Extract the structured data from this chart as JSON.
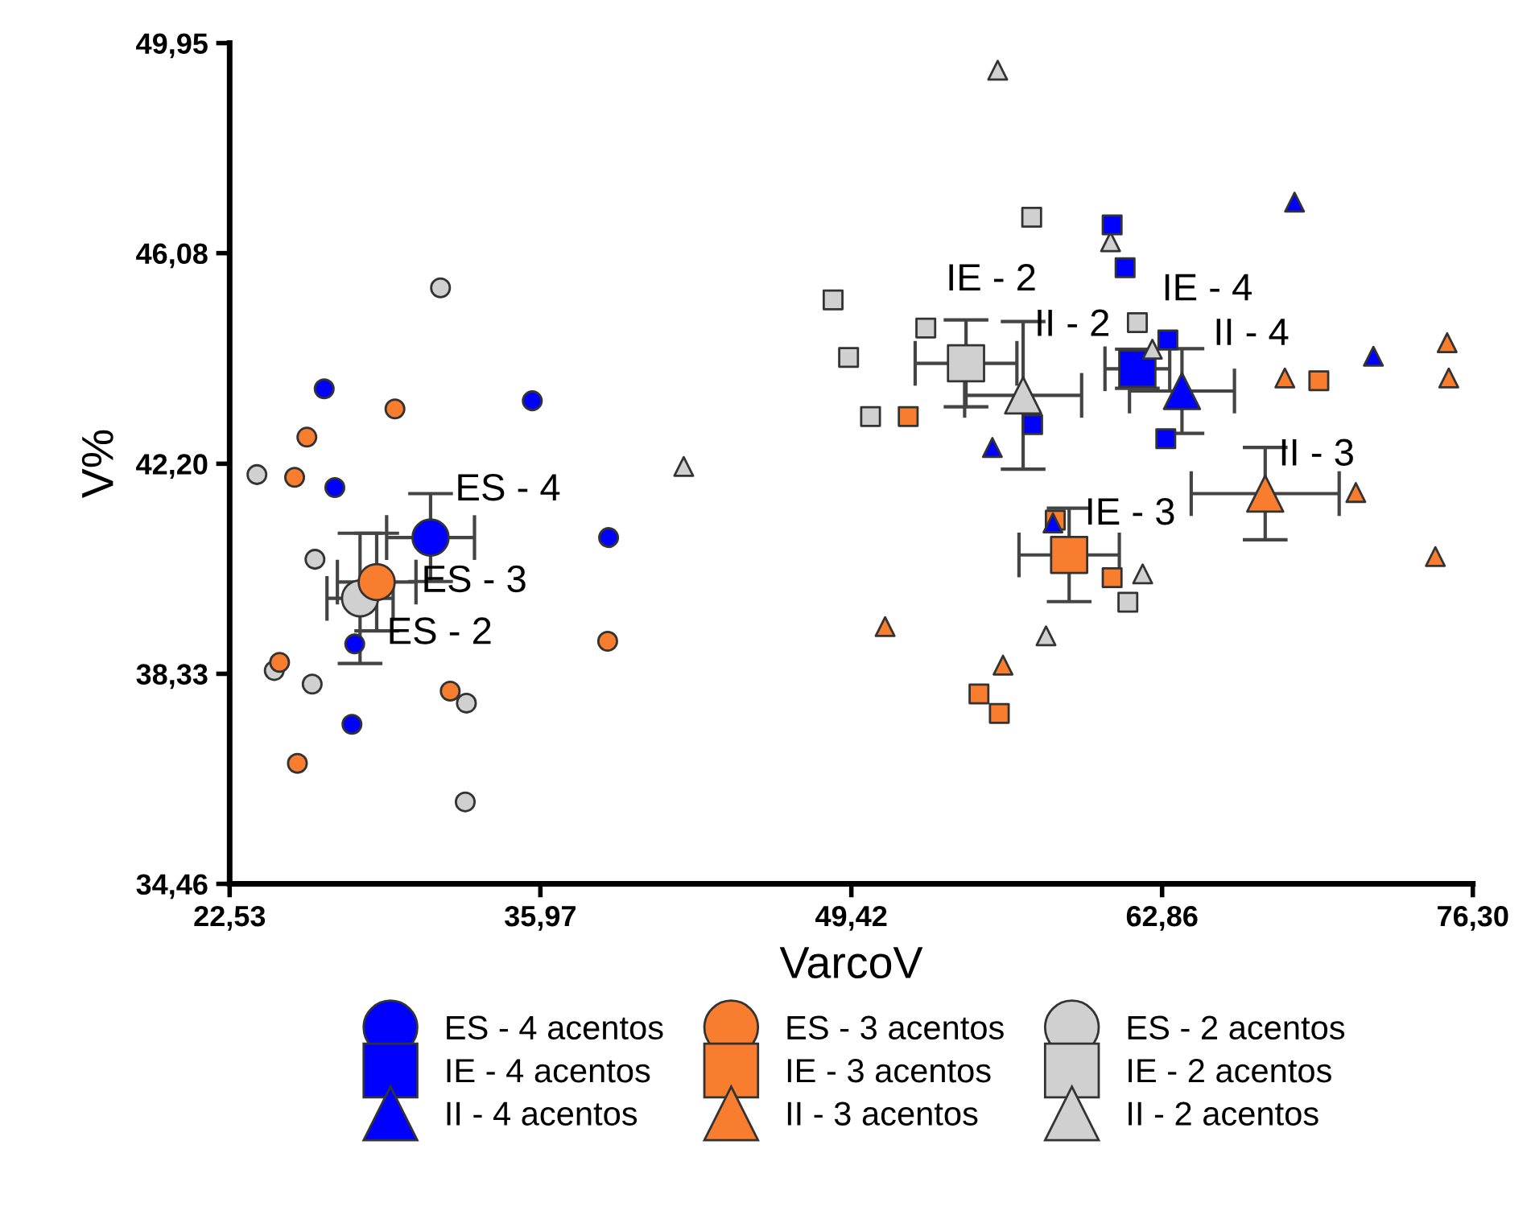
{
  "chart_data": {
    "type": "scatter",
    "xlabel": "VarcoV",
    "ylabel": "V%",
    "xlim": [
      22.53,
      76.3
    ],
    "xticks": [
      {
        "value": 22.53,
        "label": "22,53"
      },
      {
        "value": 35.97,
        "label": "35,97"
      },
      {
        "value": 49.42,
        "label": "49,42"
      },
      {
        "value": 62.86,
        "label": "62,86"
      },
      {
        "value": 76.3,
        "label": "76,30"
      }
    ],
    "ylim": [
      34.46,
      49.95
    ],
    "yticks": [
      {
        "value": 34.46,
        "label": "34,46"
      },
      {
        "value": 38.33,
        "label": "38,33"
      },
      {
        "value": 42.2,
        "label": "42,20"
      },
      {
        "value": 46.08,
        "label": "46,08"
      },
      {
        "value": 49.95,
        "label": "49,95"
      }
    ],
    "grid": false,
    "legend": "bottom",
    "series": [
      {
        "name": "ES - 4 acentos",
        "color": "#0000ff",
        "marker": "circle",
        "x": [
          26.62,
          35.62,
          27.08,
          38.92,
          27.94,
          27.82
        ],
        "values": [
          43.58,
          43.36,
          41.76,
          40.84,
          38.88,
          37.4
        ]
      },
      {
        "name": "IE - 4 acentos",
        "color": "#0000ff",
        "marker": "square",
        "x": [
          60.7,
          61.26,
          63.11,
          57.26,
          63.02
        ],
        "values": [
          46.6,
          45.81,
          44.48,
          42.92,
          42.66
        ]
      },
      {
        "name": "II - 4 acentos",
        "color": "#0000ff",
        "marker": "triangle",
        "x": [
          68.59,
          72.0,
          55.52,
          58.14
        ],
        "values": [
          47.02,
          44.18,
          42.5,
          41.11
        ]
      },
      {
        "name": "ES - 3 acentos",
        "color": "#f97d2e",
        "marker": "circle",
        "x": [
          29.68,
          25.87,
          25.34,
          38.88,
          24.69,
          32.07,
          25.46
        ],
        "values": [
          43.21,
          42.69,
          41.95,
          38.93,
          38.54,
          38.01,
          36.68
        ]
      },
      {
        "name": "IE - 3 acentos",
        "color": "#f97d2e",
        "marker": "square",
        "x": [
          51.88,
          58.24,
          60.7,
          54.94,
          55.82,
          69.64
        ],
        "values": [
          43.07,
          41.16,
          40.1,
          37.96,
          37.6,
          43.73
        ]
      },
      {
        "name": "II - 3 acentos",
        "color": "#f97d2e",
        "marker": "triangle",
        "x": [
          50.88,
          55.98,
          68.17,
          75.19,
          75.26,
          71.24,
          74.68
        ],
        "values": [
          39.2,
          38.49,
          43.78,
          44.43,
          43.78,
          41.67,
          40.49
        ]
      },
      {
        "name": "ES - 2 acentos",
        "color": "#d0d0d0",
        "marker": "circle",
        "x": [
          31.65,
          23.71,
          26.22,
          24.46,
          26.1,
          32.77,
          32.72
        ],
        "values": [
          45.44,
          42.0,
          40.44,
          38.39,
          38.14,
          37.79,
          35.97
        ]
      },
      {
        "name": "IE - 2 acentos",
        "color": "#d0d0d0",
        "marker": "square",
        "x": [
          57.22,
          48.63,
          52.64,
          49.3,
          50.25,
          61.38,
          61.79
        ],
        "values": [
          46.74,
          45.22,
          44.7,
          44.16,
          43.07,
          39.65,
          44.8
        ]
      },
      {
        "name": "II - 2 acentos",
        "color": "#d0d0d0",
        "marker": "triangle",
        "x": [
          55.75,
          60.63,
          62.44,
          62.02,
          57.84,
          42.17
        ],
        "values": [
          49.45,
          46.29,
          44.31,
          40.17,
          39.03,
          42.15
        ]
      },
      {
        "type": "bubble",
        "color": "#d0d0d0",
        "marker": "circle",
        "x": [
          28.17
        ],
        "values": [
          39.72
        ],
        "errors": [
          1.2
        ],
        "xerrors": [
          1.43
        ]
      },
      {
        "type": "bubble",
        "color": "#f97d2e",
        "marker": "circle",
        "x": [
          28.89
        ],
        "values": [
          40.02
        ],
        "errors": [
          0.9
        ],
        "xerrors": [
          1.7
        ]
      },
      {
        "type": "bubble",
        "color": "#0000ff",
        "marker": "circle",
        "x": [
          31.22
        ],
        "values": [
          40.84
        ],
        "errors": [
          0.81
        ],
        "xerrors": [
          1.9
        ]
      },
      {
        "type": "bubble",
        "color": "#d0d0d0",
        "marker": "square",
        "x": [
          54.38
        ],
        "values": [
          44.05
        ],
        "errors": [
          0.8
        ],
        "xerrors": [
          2.2
        ]
      },
      {
        "type": "bubble",
        "color": "#d0d0d0",
        "marker": "triangle",
        "x": [
          56.85
        ],
        "values": [
          43.46
        ],
        "errors": [
          1.36
        ],
        "xerrors": [
          2.53
        ]
      },
      {
        "type": "bubble",
        "color": "#f97d2e",
        "marker": "square",
        "x": [
          58.84
        ],
        "values": [
          40.52
        ],
        "errors": [
          0.86
        ],
        "xerrors": [
          2.17
        ]
      },
      {
        "type": "bubble",
        "color": "#0000ff",
        "marker": "square",
        "x": [
          61.79
        ],
        "values": [
          43.95
        ],
        "errors": [
          0.36
        ],
        "xerrors": [
          1.4
        ]
      },
      {
        "type": "bubble",
        "color": "#0000ff",
        "marker": "triangle",
        "x": [
          63.72
        ],
        "values": [
          43.54
        ],
        "errors": [
          0.78
        ],
        "xerrors": [
          2.27
        ]
      },
      {
        "type": "bubble",
        "color": "#f97d2e",
        "marker": "triangle",
        "x": [
          67.32
        ],
        "values": [
          41.65
        ],
        "errors": [
          0.85
        ],
        "xerrors": [
          3.2
        ]
      }
    ],
    "annotations": [
      {
        "text": "ES - 4",
        "x": 31.22,
        "y": 40.84
      },
      {
        "text": "ES - 3",
        "x": 28.89,
        "y": 40.02
      },
      {
        "text": "ES - 2",
        "x": 28.17,
        "y": 39.72
      },
      {
        "text": "IE - 2",
        "x": 54.38,
        "y": 44.05
      },
      {
        "text": "II - 2",
        "x": 56.85,
        "y": 43.46
      },
      {
        "text": "IE - 4",
        "x": 61.79,
        "y": 43.95
      },
      {
        "text": "II - 4",
        "x": 63.72,
        "y": 43.54
      },
      {
        "text": "II - 3",
        "x": 67.32,
        "y": 41.65
      },
      {
        "text": "IE - 3",
        "x": 58.84,
        "y": 40.52
      }
    ]
  }
}
